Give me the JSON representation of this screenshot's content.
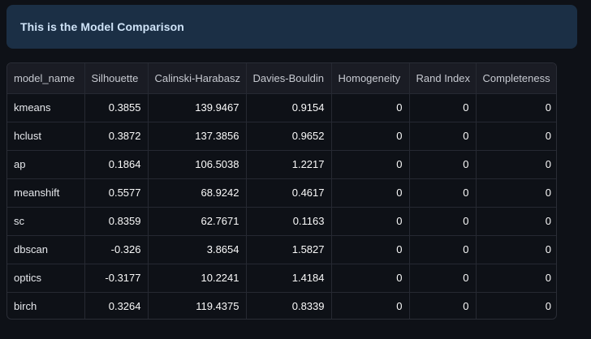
{
  "banner": {
    "text": "This is the Model Comparison"
  },
  "table": {
    "columns": [
      "model_name",
      "Silhouette",
      "Calinski-Harabasz",
      "Davies-Bouldin",
      "Homogeneity",
      "Rand Index",
      "Completeness"
    ],
    "rows": [
      [
        "kmeans",
        "0.3855",
        "139.9467",
        "0.9154",
        "0",
        "0",
        "0"
      ],
      [
        "hclust",
        "0.3872",
        "137.3856",
        "0.9652",
        "0",
        "0",
        "0"
      ],
      [
        "ap",
        "0.1864",
        "106.5038",
        "1.2217",
        "0",
        "0",
        "0"
      ],
      [
        "meanshift",
        "0.5577",
        "68.9242",
        "0.4617",
        "0",
        "0",
        "0"
      ],
      [
        "sc",
        "0.8359",
        "62.7671",
        "0.1163",
        "0",
        "0",
        "0"
      ],
      [
        "dbscan",
        "-0.326",
        "3.8654",
        "1.5827",
        "0",
        "0",
        "0"
      ],
      [
        "optics",
        "-0.3177",
        "10.2241",
        "1.4184",
        "0",
        "0",
        "0"
      ],
      [
        "birch",
        "0.3264",
        "119.4375",
        "0.8339",
        "0",
        "0",
        "0"
      ]
    ]
  }
}
